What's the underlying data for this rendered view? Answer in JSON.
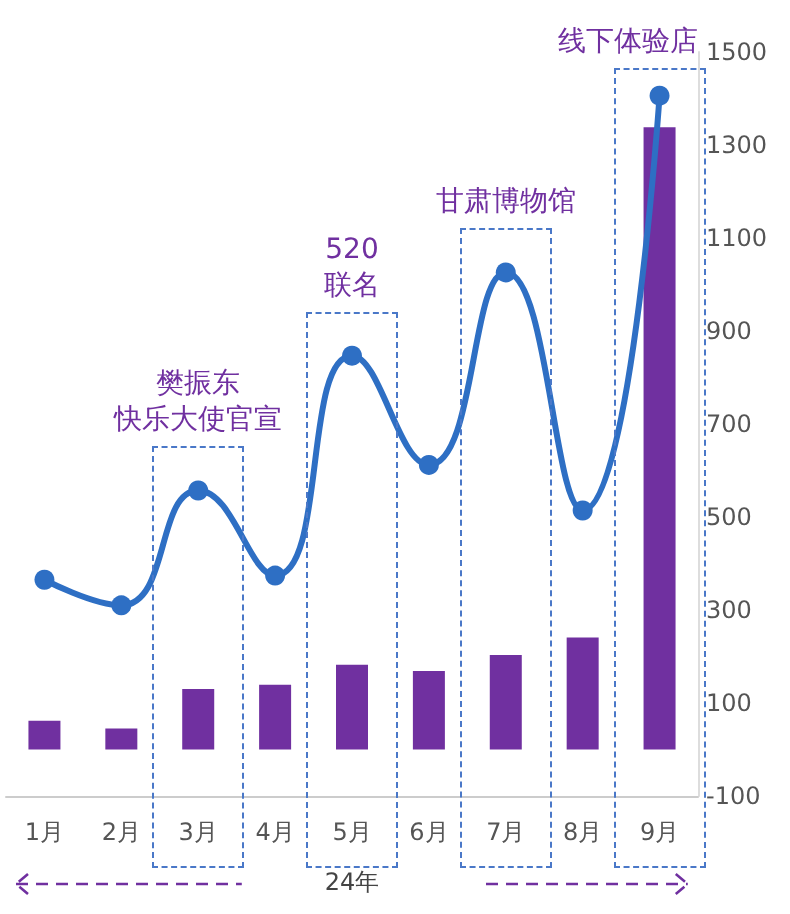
{
  "chart_data": {
    "type": "bar",
    "categories": [
      "1月",
      "2月",
      "3月",
      "4月",
      "5月",
      "6月",
      "7月",
      "8月",
      "9月"
    ],
    "series": [
      {
        "color": "#7030a0",
        "values": [
          62,
          45,
          130,
          139,
          182,
          169,
          203,
          241,
          1338
        ]
      },
      {
        "type": "line",
        "color": "#2e6fc4",
        "values": [
          365,
          310,
          557,
          374,
          847,
          612,
          1026,
          514,
          1406
        ]
      }
    ],
    "xlabel": "24年",
    "ylim": [
      -100,
      1500
    ],
    "yticks": [
      -100,
      100,
      300,
      500,
      700,
      900,
      1100,
      1300,
      1500
    ],
    "annotations": [
      {
        "text": "樊振东快乐大使官宣",
        "x": "3月",
        "y": 557
      },
      {
        "text": "520联名",
        "x": "5月",
        "y": 847
      },
      {
        "text": "甘肃博物馆",
        "x": "7月",
        "y": 1026
      },
      {
        "text": "线下体验店",
        "x": "9月",
        "y": 1406
      }
    ],
    "grid": false,
    "marker": "circle",
    "line_style": "solid"
  }
}
